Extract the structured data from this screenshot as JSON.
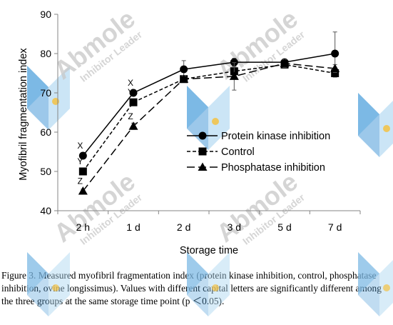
{
  "chart_data": {
    "type": "line",
    "title": "",
    "xlabel": "Storage time",
    "ylabel": "Myofibril fragmentation index",
    "categories": [
      "2 h",
      "1 d",
      "2 d",
      "3 d",
      "5 d",
      "7 d"
    ],
    "ylim": [
      40,
      90
    ],
    "yticks": [
      40,
      50,
      60,
      70,
      80,
      90
    ],
    "grid": false,
    "legend_position": "center-right",
    "series": [
      {
        "name": "Protein kinase inhibition",
        "marker": "circle",
        "line_style": "solid",
        "values": [
          54,
          70,
          76,
          77.8,
          77.8,
          80
        ],
        "error": [
          0.8,
          0.8,
          2.2,
          1.0,
          0.8,
          5.5
        ],
        "letters": [
          "X",
          "X",
          "",
          "",
          "",
          ""
        ]
      },
      {
        "name": "Control",
        "marker": "square",
        "line_style": "short-dash",
        "values": [
          50,
          67.6,
          73.5,
          75.5,
          77.2,
          75
        ],
        "error": [
          0.5,
          0.8,
          0.8,
          1.2,
          0.8,
          1.0
        ],
        "letters": [
          "Y",
          "Y",
          "",
          "",
          "",
          ""
        ]
      },
      {
        "name": "Phosphatase inhibition",
        "marker": "triangle",
        "line_style": "long-dash",
        "values": [
          45,
          61.5,
          73.5,
          74.2,
          77.5,
          76.2
        ],
        "error": [
          0.5,
          0.8,
          0.8,
          3.5,
          1.0,
          1.0
        ],
        "letters": [
          "Z",
          "Z",
          "",
          "",
          "",
          ""
        ]
      }
    ]
  },
  "caption": "Figure 3. Measured myofibril fragmentation index (protein kinase inhibition, control, phosphatase inhibition, ovine longissimus). Values with different capital letters are significantly different among the three groups at the same storage time point (p ＜0.05).",
  "watermark": {
    "brand": "Abmole",
    "tagline": "Inhibitor Leader",
    "colors": {
      "text": "#c8c8c8",
      "blue_light": "#a8d4f0",
      "blue_dark": "#4a9ad8",
      "dot": "#f5c242"
    }
  },
  "colors": {
    "line": "#000000",
    "axis": "#868686",
    "text": "#000000"
  }
}
